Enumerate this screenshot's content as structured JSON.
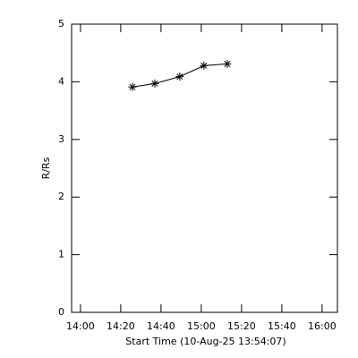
{
  "chart_data": {
    "type": "line",
    "marker": "asterisk",
    "color": "#000000",
    "xlabel": "Start Time (10-Aug-25 13:54:07)",
    "ylabel": "R/Rs",
    "x": [
      865.8,
      876.9,
      889.3,
      901.3,
      912.9
    ],
    "values": [
      3.91,
      3.97,
      4.09,
      4.28,
      4.31
    ],
    "xlim": [
      835.6,
      967.6
    ],
    "xticks": [
      {
        "value": 840,
        "label": "14:00"
      },
      {
        "value": 860,
        "label": "14:20"
      },
      {
        "value": 880,
        "label": "14:40"
      },
      {
        "value": 900,
        "label": "15:00"
      },
      {
        "value": 920,
        "label": "15:20"
      },
      {
        "value": 940,
        "label": "15:40"
      },
      {
        "value": 960,
        "label": "16:00"
      }
    ],
    "ylim": [
      0,
      5
    ],
    "yticks": [
      0,
      1,
      2,
      3,
      4,
      5
    ]
  }
}
